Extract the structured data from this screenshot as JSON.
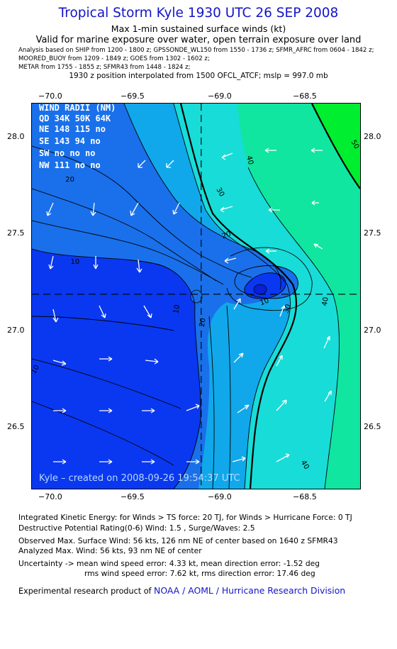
{
  "header": {
    "title": "Tropical Storm Kyle 1930 UTC 26 SEP 2008",
    "subtitle": "Max 1-min sustained surface winds (kt)",
    "valid": "Valid for marine exposure over water, open terrain exposure over land",
    "sources": [
      "Analysis based on   SHIP from 1200 - 1800 z;  GPSSONDE_WL150 from 1550 - 1736 z;   SFMR_AFRC from 0604 - 1842 z;",
      "MOORED_BUOY from 1209 - 1849 z;  GOES from 1302 - 1602 z;",
      "METAR from 1755 - 1855 z;  SFMR43 from 1448 - 1824 z;"
    ],
    "interp": "1930 z position interpolated from 1500 OFCL_ATCF; mslp = 997.0 mb"
  },
  "chart_data": {
    "type": "heatmap",
    "x_ticks": [
      "−70.0",
      "−69.5",
      "−69.0",
      "−68.5"
    ],
    "x_values": [
      -70.0,
      -69.5,
      -69.0,
      -68.5
    ],
    "y_ticks": [
      "28.0",
      "27.5",
      "27.0",
      "26.5"
    ],
    "y_values": [
      28.0,
      27.5,
      27.0,
      26.5
    ],
    "xlim": [
      -70.1,
      -68.2
    ],
    "ylim": [
      26.16,
      28.18
    ],
    "center": {
      "lon": -69.12,
      "lat": 27.18
    },
    "contour_labels": [
      {
        "text": "40",
        "lon": -68.85,
        "lat": 27.88,
        "rot": 75
      },
      {
        "text": "30",
        "lon": -69.02,
        "lat": 27.71,
        "rot": 60
      },
      {
        "text": "20",
        "lon": -69.88,
        "lat": 27.77,
        "rot": 0
      },
      {
        "text": "10",
        "lon": -69.85,
        "lat": 27.34,
        "rot": 0
      },
      {
        "text": "20",
        "lon": -68.97,
        "lat": 27.48,
        "rot": -20
      },
      {
        "text": "10",
        "lon": -68.75,
        "lat": 27.13,
        "rot": -20
      },
      {
        "text": "30",
        "lon": -68.61,
        "lat": 27.1,
        "rot": -70
      },
      {
        "text": "40",
        "lon": -68.39,
        "lat": 27.14,
        "rot": -80
      },
      {
        "text": "50",
        "lon": -68.24,
        "lat": 27.96,
        "rot": 60
      },
      {
        "text": "10",
        "lon": -69.25,
        "lat": 27.1,
        "rot": -80
      },
      {
        "text": "20",
        "lon": -69.1,
        "lat": 27.03,
        "rot": -80
      },
      {
        "text": "40",
        "lon": -68.53,
        "lat": 26.28,
        "rot": 60
      },
      {
        "text": "10",
        "lon": -70.07,
        "lat": 26.78,
        "rot": -60
      }
    ],
    "wind_radii": {
      "header": "WIND RADII (NM)",
      "rows": [
        "QD 34K 50K 64K",
        "NE  148 115  no",
        "SE  143  94  no",
        "SW   no   no  no",
        "NW 111  no   no"
      ]
    },
    "watermark": "Kyle – created on 2008-09-26 19:54:37 UTC"
  },
  "footer": {
    "ike": "Integrated Kinetic Energy:  for Winds > TS force: 20 TJ,  for Winds > Hurricane Force: 0 TJ",
    "dpr": "Destructive Potential Rating(0-6)   Wind: 1.5 , Surge/Waves: 2.5",
    "observed": "Observed Max. Surface Wind: 56 kts, 126 nm NE of center based on 1640 z SFMR43",
    "analyzed": "Analyzed Max. Wind: 56 kts, 93 nm NE of center",
    "uncertainty1": "Uncertainty -> mean wind speed error: 4.33 kt,   mean direction error:  -1.52 deg",
    "uncertainty2": "rms wind speed error: 7.62 kt,   rms direction error:  17.46 deg",
    "credit_prefix": "Experimental research product of",
    "credit_org": "NOAA / AOML / Hurricane Research Division"
  }
}
